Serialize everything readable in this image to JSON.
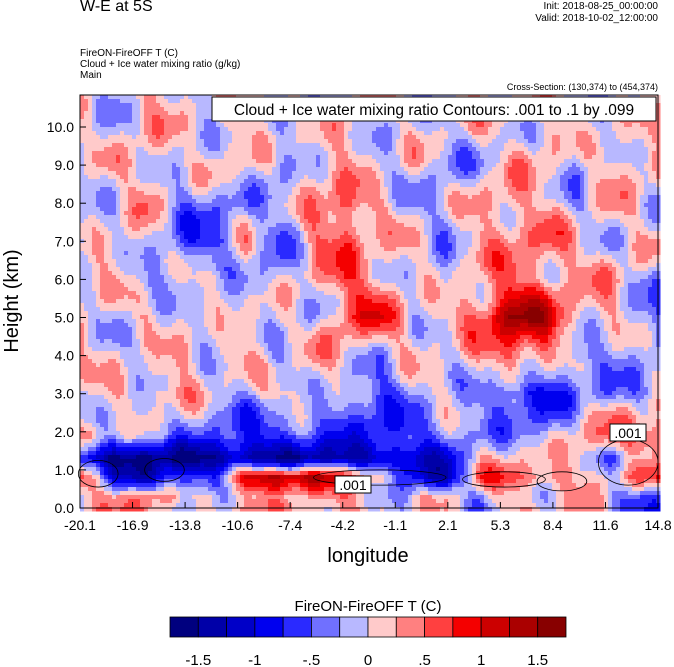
{
  "header": {
    "title": "W-E at 5S",
    "init": "Init: 2018-08-25_00:00:00",
    "valid": "Valid: 2018-10-02_12:00:00",
    "subtitles": [
      "FireON-FireOFF T   (C)",
      "Cloud + Ice water mixing ratio   (g/kg)",
      "Main"
    ],
    "cross_section": "Cross-Section: (130,374) to (454,374)"
  },
  "chart_data": {
    "type": "heatmap",
    "title": "W-E at 5S",
    "xlabel": "longitude",
    "ylabel": "Height (km)",
    "xlim": [
      -20.1,
      14.8
    ],
    "ylim": [
      0,
      10.84
    ],
    "xticks": [
      "-20.1",
      "-16.9",
      "-13.8",
      "-10.6",
      "-7.4",
      "-4.2",
      "-1.1",
      "2.1",
      "5.3",
      "8.4",
      "11.6",
      "14.8"
    ],
    "yticks": [
      "0.0",
      "1.0",
      "2.0",
      "3.0",
      "4.0",
      "5.0",
      "6.0",
      "7.0",
      "8.0",
      "9.0",
      "10.0"
    ],
    "annotation": "Cloud + Ice water mixing ratio Contours: .001 to .1 by .099",
    "contour_labels": [
      ".001",
      ".001"
    ],
    "colorbar": {
      "title": "FireON-FireOFF T  (C)",
      "levels": [
        -1.5,
        -1.25,
        -1,
        -0.75,
        -0.5,
        -0.25,
        0,
        0.25,
        0.5,
        0.75,
        1,
        1.25,
        1.5
      ],
      "tick_labels": [
        "-1.5",
        "-1",
        "-.5",
        "0",
        ".5",
        "1",
        "1.5"
      ],
      "colors": [
        "#00007f",
        "#0000a8",
        "#0000c8",
        "#0000ef",
        "#2a2aff",
        "#7070ff",
        "#b8b8ff",
        "#ffcaca",
        "#ff8080",
        "#ff4040",
        "#f40000",
        "#cc0000",
        "#aa0000",
        "#880000"
      ]
    },
    "grid_heights": [
      0.3,
      0.8,
      1.3,
      1.9,
      3,
      4,
      5,
      6,
      7,
      8,
      9,
      10.5
    ],
    "grid_lons": [
      -20.1,
      -18,
      -16,
      -14,
      -12,
      -10,
      -8,
      -6,
      -4,
      -2,
      0,
      2,
      4,
      6,
      8,
      10,
      12,
      14.8
    ],
    "values": [
      [
        0.3,
        0.2,
        0.5,
        -0.2,
        0.2,
        0.3,
        0.1,
        0.2,
        0.3,
        0.1,
        -0.2,
        0.1,
        -0.3,
        0.2,
        0.1,
        0.2,
        -0.2,
        -0.6
      ],
      [
        0.6,
        -0.8,
        -1.2,
        -0.9,
        -0.6,
        1.1,
        1.6,
        1.3,
        0.6,
        0.3,
        -0.9,
        -1.2,
        0.4,
        0.6,
        0.5,
        0.2,
        0.1,
        0.5
      ],
      [
        -1.2,
        -1.4,
        -1.5,
        -1.6,
        -1.6,
        -1.5,
        -1.4,
        -1.4,
        -1.3,
        -1.3,
        -1.2,
        -0.9,
        0.1,
        0.2,
        -0.1,
        0.3,
        -0.3,
        0.2
      ],
      [
        0.6,
        -0.2,
        -0.3,
        -0.3,
        -0.5,
        -0.7,
        -0.8,
        -0.6,
        -0.6,
        -0.8,
        -0.6,
        -0.4,
        -0.3,
        -0.2,
        -0.3,
        0.2,
        0.6,
        0.8
      ],
      [
        -0.2,
        0.1,
        0.2,
        0.3,
        -0.1,
        -0.2,
        0.2,
        0.1,
        -0.4,
        -0.6,
        -0.2,
        0.1,
        -0.3,
        -0.8,
        -0.9,
        -0.3,
        -0.4,
        -0.2
      ],
      [
        0.2,
        0.1,
        -0.2,
        0.2,
        0.1,
        0.2,
        -0.3,
        0.3,
        0.2,
        -0.2,
        0.1,
        -0.1,
        0.2,
        0.7,
        0.4,
        -0.5,
        -0.2,
        -0.2
      ],
      [
        0.1,
        -0.2,
        0.2,
        0.1,
        -0.3,
        0.1,
        0.2,
        -0.3,
        0.6,
        0.8,
        0.1,
        0.2,
        0.5,
        1.5,
        1.2,
        0.3,
        0.1,
        -0.4
      ],
      [
        0.2,
        0.2,
        -0.3,
        -0.2,
        0.2,
        -0.2,
        -0.3,
        0.2,
        0.6,
        0.3,
        -0.1,
        -0.2,
        0.3,
        0.6,
        0.3,
        0.1,
        0.4,
        -0.4
      ],
      [
        -0.3,
        0.2,
        0.1,
        -0.5,
        -0.7,
        0.1,
        -0.5,
        0.4,
        0.6,
        0.1,
        0.2,
        -0.2,
        0.2,
        0.3,
        0.6,
        0.2,
        -0.1,
        0.2
      ],
      [
        0.2,
        -0.2,
        0.3,
        -0.3,
        -0.4,
        -0.2,
        -0.2,
        0.2,
        0.7,
        0.2,
        -0.3,
        -0.2,
        0.3,
        0.4,
        0.1,
        -0.2,
        0.2,
        -0.1
      ],
      [
        -0.2,
        0.2,
        0.2,
        -0.1,
        0.2,
        0.1,
        -0.3,
        0.2,
        0.2,
        -0.2,
        0.2,
        -0.3,
        -0.2,
        0.2,
        0.2,
        -0.2,
        0.3,
        0.2
      ],
      [
        0.1,
        -0.2,
        0.2,
        0.2,
        -0.2,
        0.2,
        0.1,
        -0.2,
        0.2,
        0.1,
        -0.2,
        0.1,
        0.2,
        -0.1,
        0.2,
        0.1,
        -0.2,
        0.1
      ]
    ]
  }
}
